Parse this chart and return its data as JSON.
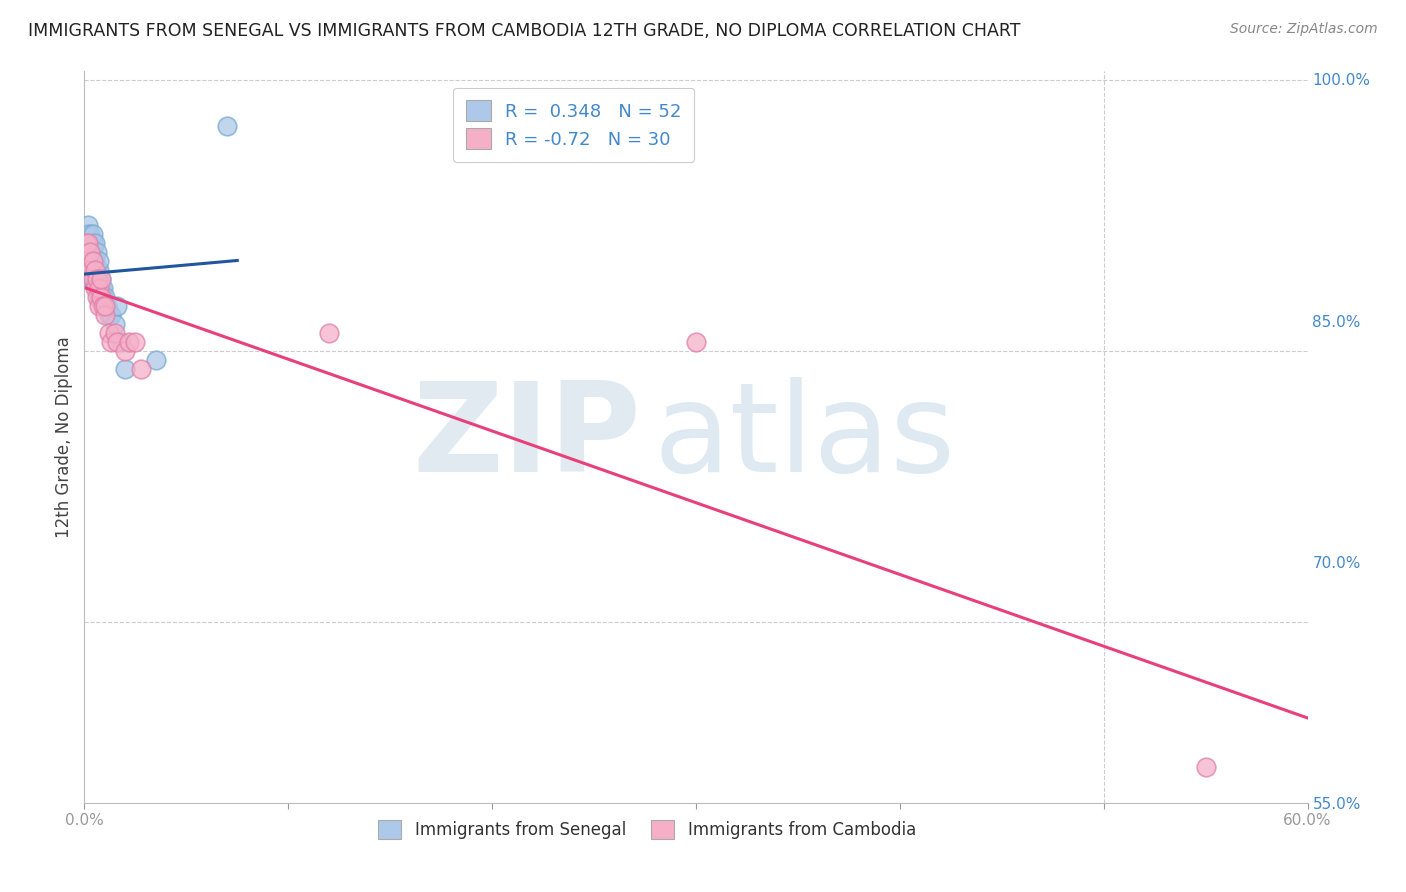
{
  "title": "IMMIGRANTS FROM SENEGAL VS IMMIGRANTS FROM CAMBODIA 12TH GRADE, NO DIPLOMA CORRELATION CHART",
  "source": "Source: ZipAtlas.com",
  "ylabel": "12th Grade, No Diploma",
  "xlim": [
    0.0,
    0.6
  ],
  "ylim": [
    0.6,
    1.005
  ],
  "senegal_R": 0.348,
  "senegal_N": 52,
  "cambodia_R": -0.72,
  "cambodia_N": 30,
  "senegal_color": "#adc8e8",
  "senegal_edge_color": "#7aaad0",
  "senegal_line_color": "#2255a0",
  "cambodia_color": "#f5b0c8",
  "cambodia_edge_color": "#e080a8",
  "cambodia_line_color": "#e8407a",
  "watermark_zip_color": "#c8dff0",
  "watermark_atlas_color": "#b0ccec",
  "background_color": "#ffffff",
  "grid_color": "#cccccc",
  "right_tick_color": "#4488cc",
  "senegal_x": [
    0.001,
    0.001,
    0.001,
    0.001,
    0.001,
    0.002,
    0.002,
    0.002,
    0.002,
    0.002,
    0.002,
    0.003,
    0.003,
    0.003,
    0.003,
    0.003,
    0.003,
    0.004,
    0.004,
    0.004,
    0.004,
    0.004,
    0.004,
    0.005,
    0.005,
    0.005,
    0.005,
    0.006,
    0.006,
    0.006,
    0.006,
    0.007,
    0.007,
    0.007,
    0.007,
    0.007,
    0.008,
    0.008,
    0.008,
    0.009,
    0.009,
    0.01,
    0.01,
    0.011,
    0.012,
    0.013,
    0.015,
    0.016,
    0.018,
    0.02,
    0.035,
    0.07
  ],
  "senegal_y": [
    0.895,
    0.9,
    0.905,
    0.91,
    0.915,
    0.895,
    0.9,
    0.905,
    0.91,
    0.915,
    0.92,
    0.89,
    0.895,
    0.9,
    0.905,
    0.91,
    0.915,
    0.89,
    0.895,
    0.9,
    0.905,
    0.91,
    0.915,
    0.89,
    0.895,
    0.9,
    0.91,
    0.885,
    0.89,
    0.895,
    0.905,
    0.88,
    0.885,
    0.89,
    0.895,
    0.9,
    0.88,
    0.885,
    0.89,
    0.88,
    0.885,
    0.875,
    0.88,
    0.875,
    0.87,
    0.87,
    0.865,
    0.875,
    0.855,
    0.84,
    0.845,
    0.975
  ],
  "cambodia_x": [
    0.001,
    0.001,
    0.002,
    0.002,
    0.003,
    0.003,
    0.004,
    0.004,
    0.005,
    0.005,
    0.006,
    0.006,
    0.007,
    0.007,
    0.008,
    0.008,
    0.009,
    0.01,
    0.01,
    0.012,
    0.013,
    0.015,
    0.016,
    0.02,
    0.022,
    0.025,
    0.028,
    0.12,
    0.3,
    0.55
  ],
  "cambodia_y": [
    0.9,
    0.91,
    0.9,
    0.91,
    0.895,
    0.905,
    0.89,
    0.9,
    0.885,
    0.895,
    0.88,
    0.89,
    0.875,
    0.885,
    0.88,
    0.89,
    0.875,
    0.87,
    0.875,
    0.86,
    0.855,
    0.86,
    0.855,
    0.85,
    0.855,
    0.855,
    0.84,
    0.86,
    0.855,
    0.62
  ]
}
